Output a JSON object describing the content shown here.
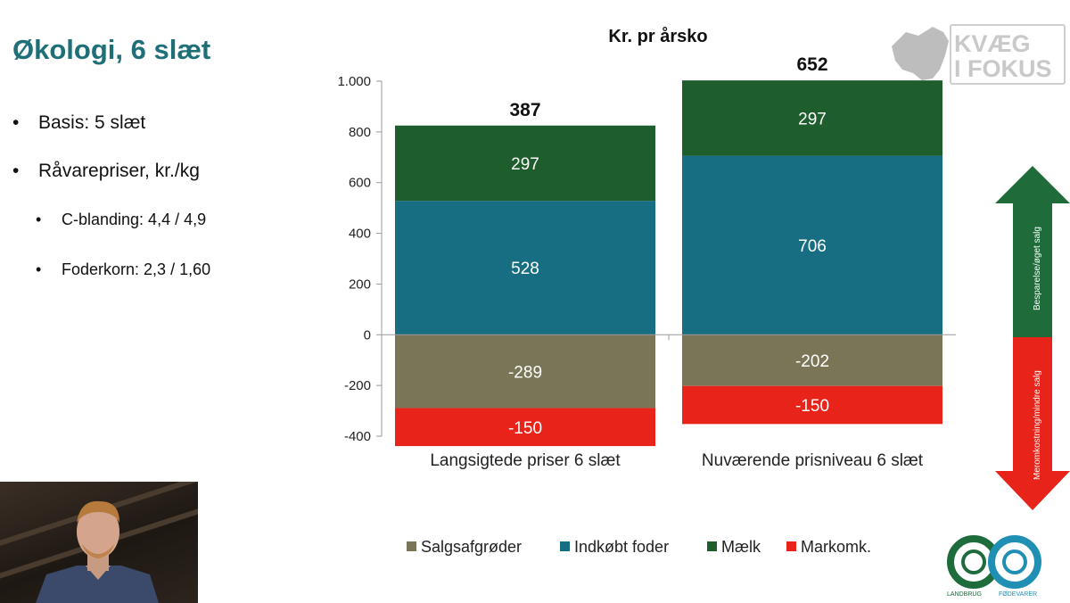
{
  "slide": {
    "title": "Økologi, 6 slæt",
    "bullets": [
      {
        "text": "Basis: 5 slæt",
        "level": 1
      },
      {
        "text": "Råvarepriser, kr./kg",
        "level": 1
      },
      {
        "text": "C-blanding: 4,4 / 4,9",
        "level": 2
      },
      {
        "text": "Foderkorn: 2,3 / 1,60",
        "level": 2
      }
    ]
  },
  "logo_top": {
    "line1": "KVÆG",
    "line2": "I FOKUS",
    "icon": "cow-head-icon"
  },
  "logo_bottom": {
    "left_text": "LANDBRUG",
    "right_text": "FØDEVARER",
    "icon": "two-rings-icon"
  },
  "arrows": {
    "up_label": "Besparelse/øget salg",
    "down_label": "Meromkostning/mindre salg",
    "up_color": "#1f6b3a",
    "down_color": "#e8231a"
  },
  "chart_data": {
    "type": "bar",
    "stacked": true,
    "title": "Kr. pr årsko",
    "categories": [
      "Langsigtede priser 6 slæt",
      "Nuværende prisniveau 6 slæt"
    ],
    "totals": [
      387,
      652
    ],
    "series": [
      {
        "name": "Salgsafgrøder",
        "values": [
          -289,
          -202
        ],
        "color": "#7b7557"
      },
      {
        "name": "Indkøbt foder",
        "values": [
          528,
          706
        ],
        "color": "#176d81"
      },
      {
        "name": "Mælk",
        "values": [
          297,
          297
        ],
        "color": "#1e5e2c"
      },
      {
        "name": "Markomk.",
        "values": [
          -150,
          -150
        ],
        "color": "#e8231a"
      }
    ],
    "ylim": [
      -400,
      1000
    ],
    "yticks": [
      -400,
      -200,
      0,
      200,
      400,
      600,
      800,
      1000
    ],
    "ytick_labels": [
      "-400",
      "-200",
      "0",
      "200",
      "400",
      "600",
      "800",
      "1.000"
    ],
    "legend_position": "bottom",
    "grid": false
  }
}
